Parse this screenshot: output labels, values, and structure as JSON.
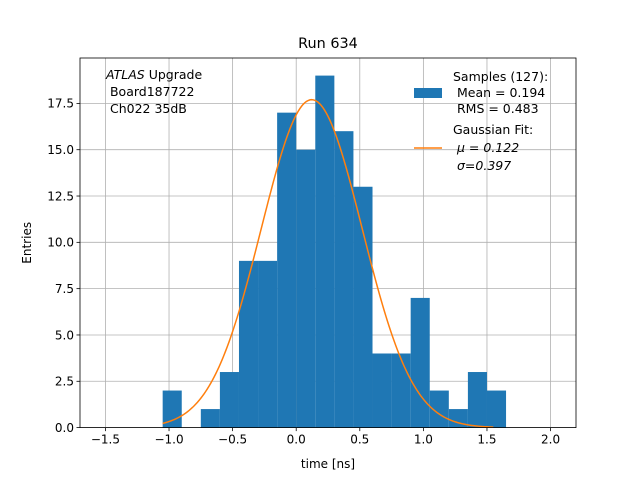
{
  "chart_data": {
    "type": "bar",
    "title": "Run 634",
    "xlabel": "time [ns]",
    "ylabel": "Entries",
    "xlim": [
      -1.7,
      2.2
    ],
    "ylim": [
      0,
      19.95
    ],
    "grid": true,
    "x_ticks": [
      -1.5,
      -1.0,
      -0.5,
      0.0,
      0.5,
      1.0,
      1.5,
      2.0
    ],
    "x_tick_labels": [
      "−1.5",
      "−1.0",
      "−0.5",
      "0.0",
      "0.5",
      "1.0",
      "1.5",
      "2.0"
    ],
    "y_ticks": [
      0,
      2.5,
      5,
      7.5,
      10,
      12.5,
      15,
      17.5
    ],
    "y_tick_labels": [
      "0.0",
      "2.5",
      "5.0",
      "7.5",
      "10.0",
      "12.5",
      "15.0",
      "17.5"
    ],
    "histogram": {
      "name": "Samples (127):",
      "color": "#1f77b4",
      "bin_edges": [
        -1.05,
        -0.9,
        -0.75,
        -0.6,
        -0.45,
        -0.3,
        -0.15,
        0.0,
        0.15,
        0.3,
        0.45,
        0.6,
        0.75,
        0.9,
        1.05,
        1.2,
        1.35,
        1.5,
        1.65
      ],
      "counts": [
        2,
        0,
        1,
        3,
        9,
        9,
        17,
        15,
        19,
        16,
        13,
        4,
        4,
        7,
        2,
        1,
        3,
        2
      ]
    },
    "fit": {
      "name": "Gaussian Fit:",
      "color": "#ff7f0e",
      "mu": 0.122,
      "sigma": 0.397,
      "amplitude": 17.7,
      "x_range": [
        -1.05,
        1.55
      ]
    },
    "annotation": {
      "italic": "ATLAS",
      "line1_rest": " Upgrade",
      "line2": " Board187722",
      "line3": " Ch022 35dB"
    },
    "legend": {
      "position": "top-right",
      "samples_title": "Samples (127):",
      "samples_mean": " Mean = 0.194",
      "samples_rms": " RMS = 0.483",
      "fit_title": "Gaussian Fit:",
      "fit_mu_label": "μ = 0.122",
      "fit_sigma_label": "σ=0.397"
    }
  }
}
